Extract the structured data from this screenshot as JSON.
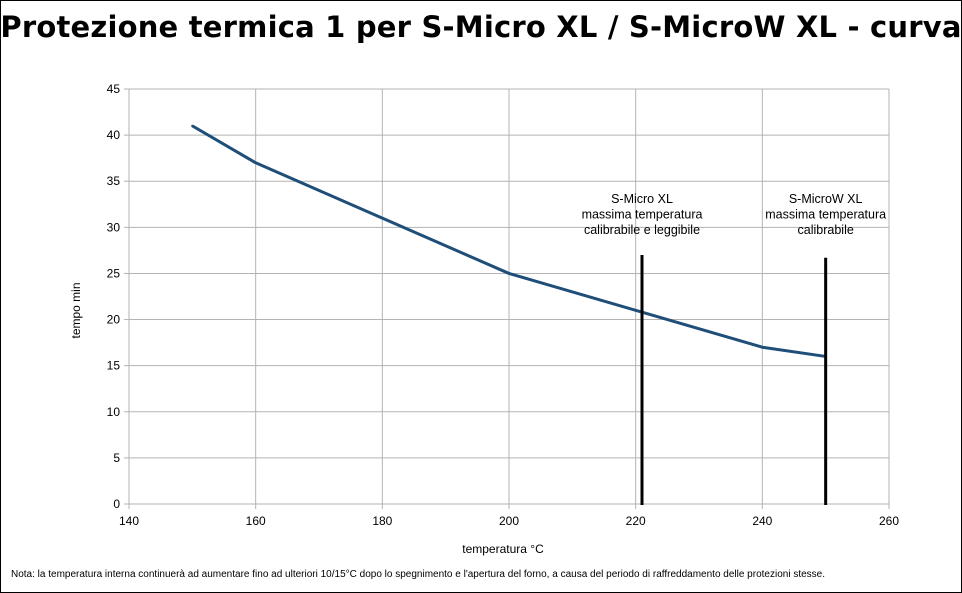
{
  "title": "Protezione termica 1 per S-Micro XL / S-MicroW XL - curva",
  "note": "Nota: la temperatura interna continuerà ad aumentare fino ad ulteriori 10/15°C dopo lo spegnimento e l'apertura del forno, a causa del periodo di raffreddamento delle protezioni stesse.",
  "chart_data": {
    "type": "line",
    "title": "Protezione termica 1 per S-Micro XL / S-MicroW XL - curva",
    "xlabel": "temperatura °C",
    "ylabel": "tempo min",
    "xlim": [
      140,
      260
    ],
    "ylim": [
      0,
      45
    ],
    "xticks": [
      140,
      160,
      180,
      200,
      220,
      240,
      260
    ],
    "yticks": [
      0,
      5,
      10,
      15,
      20,
      25,
      30,
      35,
      40,
      45
    ],
    "grid": true,
    "series": [
      {
        "name": "curva",
        "color": "#1f4e79",
        "x": [
          150,
          160,
          180,
          200,
          220,
          240,
          250
        ],
        "y": [
          41,
          37,
          31,
          25,
          21,
          17,
          16
        ]
      }
    ],
    "markers": [
      {
        "x": 221,
        "y_top": 27,
        "lines": [
          "S-Micro XL",
          "massima temperatura",
          "calibrabile e leggibile"
        ]
      },
      {
        "x": 250,
        "y_top": 26.7,
        "lines": [
          "S-MicroW XL",
          "massima temperatura",
          "calibrabile"
        ]
      }
    ]
  }
}
